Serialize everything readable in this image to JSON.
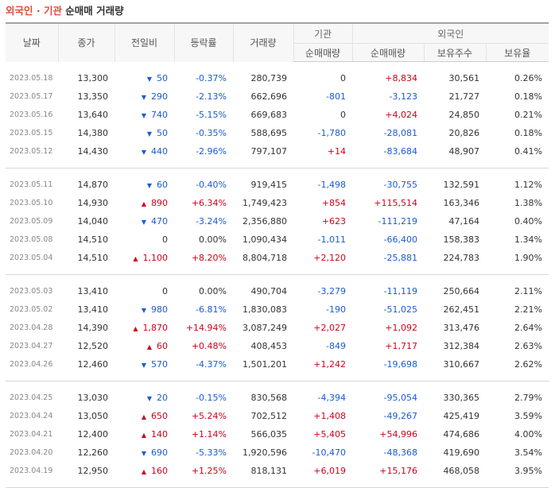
{
  "title": {
    "part1": "외국인 · 기관",
    "part2": " 순매매 거래량"
  },
  "headers": {
    "date": "날짜",
    "close": "종가",
    "change": "전일비",
    "rate": "등락률",
    "volume": "거래량",
    "institution": "기관",
    "foreign": "외국인",
    "inst_net": "순매매량",
    "foreign_net": "순매매량",
    "holding": "보유주수",
    "holding_rate": "보유율"
  },
  "groups": [
    [
      {
        "date": "2023.05.18",
        "close": "13,300",
        "dir": "down",
        "change": "50",
        "rate": "-0.37%",
        "volume": "280,739",
        "inst": "0",
        "foreign": "+8,834",
        "hold": "30,561",
        "hrate": "0.26%"
      },
      {
        "date": "2023.05.17",
        "close": "13,350",
        "dir": "down",
        "change": "290",
        "rate": "-2.13%",
        "volume": "662,696",
        "inst": "-801",
        "foreign": "-3,123",
        "hold": "21,727",
        "hrate": "0.18%"
      },
      {
        "date": "2023.05.16",
        "close": "13,640",
        "dir": "down",
        "change": "740",
        "rate": "-5.15%",
        "volume": "669,683",
        "inst": "0",
        "foreign": "+4,024",
        "hold": "24,850",
        "hrate": "0.21%"
      },
      {
        "date": "2023.05.15",
        "close": "14,380",
        "dir": "down",
        "change": "50",
        "rate": "-0.35%",
        "volume": "588,695",
        "inst": "-1,780",
        "foreign": "-28,081",
        "hold": "20,826",
        "hrate": "0.18%"
      },
      {
        "date": "2023.05.12",
        "close": "14,430",
        "dir": "down",
        "change": "440",
        "rate": "-2.96%",
        "volume": "797,107",
        "inst": "+14",
        "foreign": "-83,684",
        "hold": "48,907",
        "hrate": "0.41%"
      }
    ],
    [
      {
        "date": "2023.05.11",
        "close": "14,870",
        "dir": "down",
        "change": "60",
        "rate": "-0.40%",
        "volume": "919,415",
        "inst": "-1,498",
        "foreign": "-30,755",
        "hold": "132,591",
        "hrate": "1.12%"
      },
      {
        "date": "2023.05.10",
        "close": "14,930",
        "dir": "up",
        "change": "890",
        "rate": "+6.34%",
        "volume": "1,749,423",
        "inst": "+854",
        "foreign": "+115,514",
        "hold": "163,346",
        "hrate": "1.38%"
      },
      {
        "date": "2023.05.09",
        "close": "14,040",
        "dir": "down",
        "change": "470",
        "rate": "-3.24%",
        "volume": "2,356,880",
        "inst": "+623",
        "foreign": "-111,219",
        "hold": "47,164",
        "hrate": "0.40%"
      },
      {
        "date": "2023.05.08",
        "close": "14,510",
        "dir": "none",
        "change": "0",
        "rate": "0.00%",
        "volume": "1,090,434",
        "inst": "-1,011",
        "foreign": "-66,400",
        "hold": "158,383",
        "hrate": "1.34%"
      },
      {
        "date": "2023.05.04",
        "close": "14,510",
        "dir": "up",
        "change": "1,100",
        "rate": "+8.20%",
        "volume": "8,804,718",
        "inst": "+2,120",
        "foreign": "-25,881",
        "hold": "224,783",
        "hrate": "1.90%"
      }
    ],
    [
      {
        "date": "2023.05.03",
        "close": "13,410",
        "dir": "none",
        "change": "0",
        "rate": "0.00%",
        "volume": "490,704",
        "inst": "-3,279",
        "foreign": "-11,119",
        "hold": "250,664",
        "hrate": "2.11%"
      },
      {
        "date": "2023.05.02",
        "close": "13,410",
        "dir": "down",
        "change": "980",
        "rate": "-6.81%",
        "volume": "1,830,083",
        "inst": "-190",
        "foreign": "-51,025",
        "hold": "262,451",
        "hrate": "2.21%"
      },
      {
        "date": "2023.04.28",
        "close": "14,390",
        "dir": "up",
        "change": "1,870",
        "rate": "+14.94%",
        "volume": "3,087,249",
        "inst": "+2,027",
        "foreign": "+1,092",
        "hold": "313,476",
        "hrate": "2.64%"
      },
      {
        "date": "2023.04.27",
        "close": "12,520",
        "dir": "up",
        "change": "60",
        "rate": "+0.48%",
        "volume": "408,453",
        "inst": "-849",
        "foreign": "+1,717",
        "hold": "312,384",
        "hrate": "2.63%"
      },
      {
        "date": "2023.04.26",
        "close": "12,460",
        "dir": "down",
        "change": "570",
        "rate": "-4.37%",
        "volume": "1,501,201",
        "inst": "+1,242",
        "foreign": "-19,698",
        "hold": "310,667",
        "hrate": "2.62%"
      }
    ],
    [
      {
        "date": "2023.04.25",
        "close": "13,030",
        "dir": "down",
        "change": "20",
        "rate": "-0.15%",
        "volume": "830,568",
        "inst": "-4,394",
        "foreign": "-95,054",
        "hold": "330,365",
        "hrate": "2.79%"
      },
      {
        "date": "2023.04.24",
        "close": "13,050",
        "dir": "up",
        "change": "650",
        "rate": "+5.24%",
        "volume": "702,512",
        "inst": "+1,408",
        "foreign": "-49,267",
        "hold": "425,419",
        "hrate": "3.59%"
      },
      {
        "date": "2023.04.21",
        "close": "12,400",
        "dir": "up",
        "change": "140",
        "rate": "+1.14%",
        "volume": "566,035",
        "inst": "+5,405",
        "foreign": "+54,996",
        "hold": "474,686",
        "hrate": "4.00%"
      },
      {
        "date": "2023.04.20",
        "close": "12,260",
        "dir": "down",
        "change": "690",
        "rate": "-5.33%",
        "volume": "1,920,596",
        "inst": "-10,470",
        "foreign": "-48,368",
        "hold": "419,690",
        "hrate": "3.54%"
      },
      {
        "date": "2023.04.19",
        "close": "12,950",
        "dir": "up",
        "change": "160",
        "rate": "+1.25%",
        "volume": "818,131",
        "inst": "+6,019",
        "foreign": "+15,176",
        "hold": "468,058",
        "hrate": "3.95%"
      }
    ]
  ],
  "colors": {
    "up": "#d0021b",
    "down": "#1a5bd6",
    "title_accent": "#e24b3b"
  }
}
